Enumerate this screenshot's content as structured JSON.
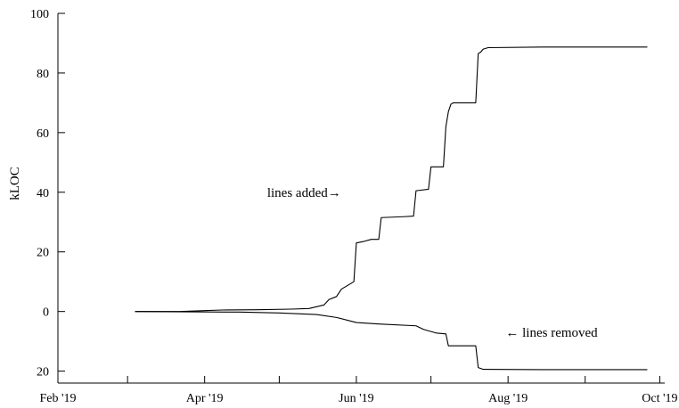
{
  "chart_data": {
    "type": "line",
    "title": "",
    "xlabel": "",
    "ylabel": "kLOC",
    "x_ticks": [
      "2019-02-01",
      "2019-03-01",
      "2019-04-01",
      "2019-05-01",
      "2019-06-01",
      "2019-07-01",
      "2019-08-01",
      "2019-09-01",
      "2019-10-01"
    ],
    "x_tick_labels": [
      "Feb '19",
      "Apr '19",
      "Jun '19",
      "Aug '19",
      "Oct '19"
    ],
    "x_labeled_ticks": [
      "2019-02-01",
      "2019-04-01",
      "2019-06-01",
      "2019-08-01",
      "2019-10-01"
    ],
    "xlim": [
      "2019-02-01",
      "2019-10-03"
    ],
    "y_ticks": [
      -20,
      0,
      20,
      40,
      60,
      80,
      100
    ],
    "y_tick_labels": [
      "20",
      "0",
      "20",
      "40",
      "60",
      "80",
      "100"
    ],
    "ylim": [
      -24,
      100
    ],
    "grid": false,
    "annotations": [
      {
        "text": "lines added→",
        "x": "2019-05-11",
        "y": 40
      },
      {
        "text": "← lines removed",
        "x": "2019-07-31",
        "y": -7
      }
    ],
    "series": [
      {
        "key": "added",
        "points": [
          [
            "2019-03-04",
            0
          ],
          [
            "2019-03-22",
            0
          ],
          [
            "2019-04-01",
            0.3
          ],
          [
            "2019-04-08",
            0.5
          ],
          [
            "2019-04-22",
            0.6
          ],
          [
            "2019-05-06",
            0.8
          ],
          [
            "2019-05-13",
            1.0
          ],
          [
            "2019-05-16",
            1.6
          ],
          [
            "2019-05-19",
            2.2
          ],
          [
            "2019-05-21",
            4.0
          ],
          [
            "2019-05-24",
            5.0
          ],
          [
            "2019-05-26",
            7.5
          ],
          [
            "2019-05-29",
            9.0
          ],
          [
            "2019-05-31",
            10.0
          ],
          [
            "2019-06-01",
            23.0
          ],
          [
            "2019-06-04",
            23.5
          ],
          [
            "2019-06-07",
            24.2
          ],
          [
            "2019-06-10",
            24.2
          ],
          [
            "2019-06-11",
            31.5
          ],
          [
            "2019-06-20",
            31.8
          ],
          [
            "2019-06-24",
            32.0
          ],
          [
            "2019-06-25",
            40.5
          ],
          [
            "2019-06-30",
            41.0
          ],
          [
            "2019-07-01",
            48.5
          ],
          [
            "2019-07-06",
            48.5
          ],
          [
            "2019-07-07",
            62.0
          ],
          [
            "2019-07-08",
            67.0
          ],
          [
            "2019-07-09",
            69.5
          ],
          [
            "2019-07-10",
            70.0
          ],
          [
            "2019-07-19",
            70.0
          ],
          [
            "2019-07-20",
            86.5
          ],
          [
            "2019-07-21",
            87.0
          ],
          [
            "2019-07-22",
            88.0
          ],
          [
            "2019-07-24",
            88.5
          ],
          [
            "2019-08-15",
            88.7
          ],
          [
            "2019-09-26",
            88.7
          ]
        ]
      },
      {
        "key": "removed",
        "points": [
          [
            "2019-03-04",
            0
          ],
          [
            "2019-04-15",
            -0.2
          ],
          [
            "2019-05-01",
            -0.5
          ],
          [
            "2019-05-16",
            -1.0
          ],
          [
            "2019-05-24",
            -2.0
          ],
          [
            "2019-06-01",
            -3.7
          ],
          [
            "2019-06-10",
            -4.2
          ],
          [
            "2019-06-25",
            -4.8
          ],
          [
            "2019-06-28",
            -6.0
          ],
          [
            "2019-07-03",
            -7.2
          ],
          [
            "2019-07-07",
            -7.5
          ],
          [
            "2019-07-08",
            -11.5
          ],
          [
            "2019-07-19",
            -11.5
          ],
          [
            "2019-07-20",
            -18.8
          ],
          [
            "2019-07-22",
            -19.4
          ],
          [
            "2019-08-15",
            -19.5
          ],
          [
            "2019-09-26",
            -19.5
          ]
        ]
      }
    ]
  }
}
